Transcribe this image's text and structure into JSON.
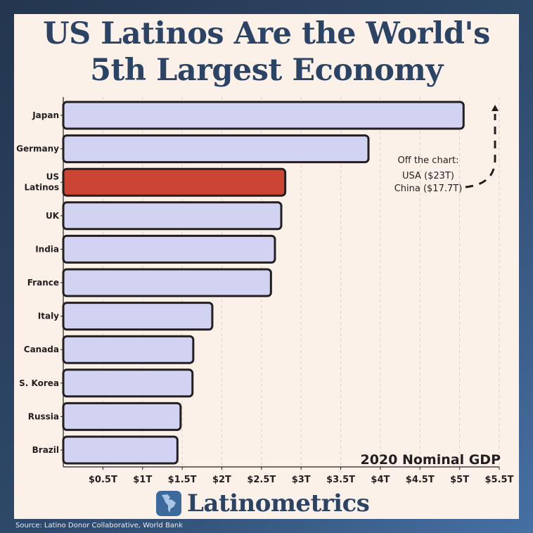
{
  "title_line1": "US Latinos Are the World's",
  "title_line2": "5th Largest Economy",
  "brand": {
    "name": "Latinometrics",
    "icon": "latin-america-map-icon"
  },
  "source": "Source: Latino Donor Collaborative, World Bank",
  "colors": {
    "bar": "#d2d3f2",
    "highlight": "#cc4433",
    "outline": "#231f20",
    "title": "#2b4466",
    "panel": "#fcf1e8"
  },
  "chart_data": {
    "type": "bar",
    "orientation": "horizontal",
    "title": "2020 Nominal GDP",
    "unit": "trillion USD",
    "categories": [
      "Japan",
      "Germany",
      "US Latinos",
      "UK",
      "India",
      "France",
      "Italy",
      "Canada",
      "S. Korea",
      "Russia",
      "Brazil"
    ],
    "category_labels": [
      [
        "Japan"
      ],
      [
        "Germany"
      ],
      [
        "US",
        "Latinos"
      ],
      [
        "UK"
      ],
      [
        "India"
      ],
      [
        "France"
      ],
      [
        "Italy"
      ],
      [
        "Canada"
      ],
      [
        "S. Korea"
      ],
      [
        "Russia"
      ],
      [
        "Brazil"
      ]
    ],
    "values": [
      5.05,
      3.85,
      2.8,
      2.75,
      2.67,
      2.62,
      1.88,
      1.64,
      1.63,
      1.48,
      1.44
    ],
    "highlight": "US Latinos",
    "xlim": [
      0,
      5.5
    ],
    "xticks": [
      0.5,
      1,
      1.5,
      2,
      2.5,
      3,
      3.5,
      4,
      4.5,
      5,
      5.5
    ],
    "xtick_labels": [
      "$0.5T",
      "$1T",
      "$1.5T",
      "$2T",
      "$2.5T",
      "$3T",
      "$3.5T",
      "$4T",
      "$4.5T",
      "$5T",
      "$5.5T"
    ],
    "grid": "vertical-dashed",
    "annotation": {
      "heading": "Off the chart:",
      "lines": [
        "USA ($23T)",
        "China ($17.7T)"
      ]
    }
  }
}
